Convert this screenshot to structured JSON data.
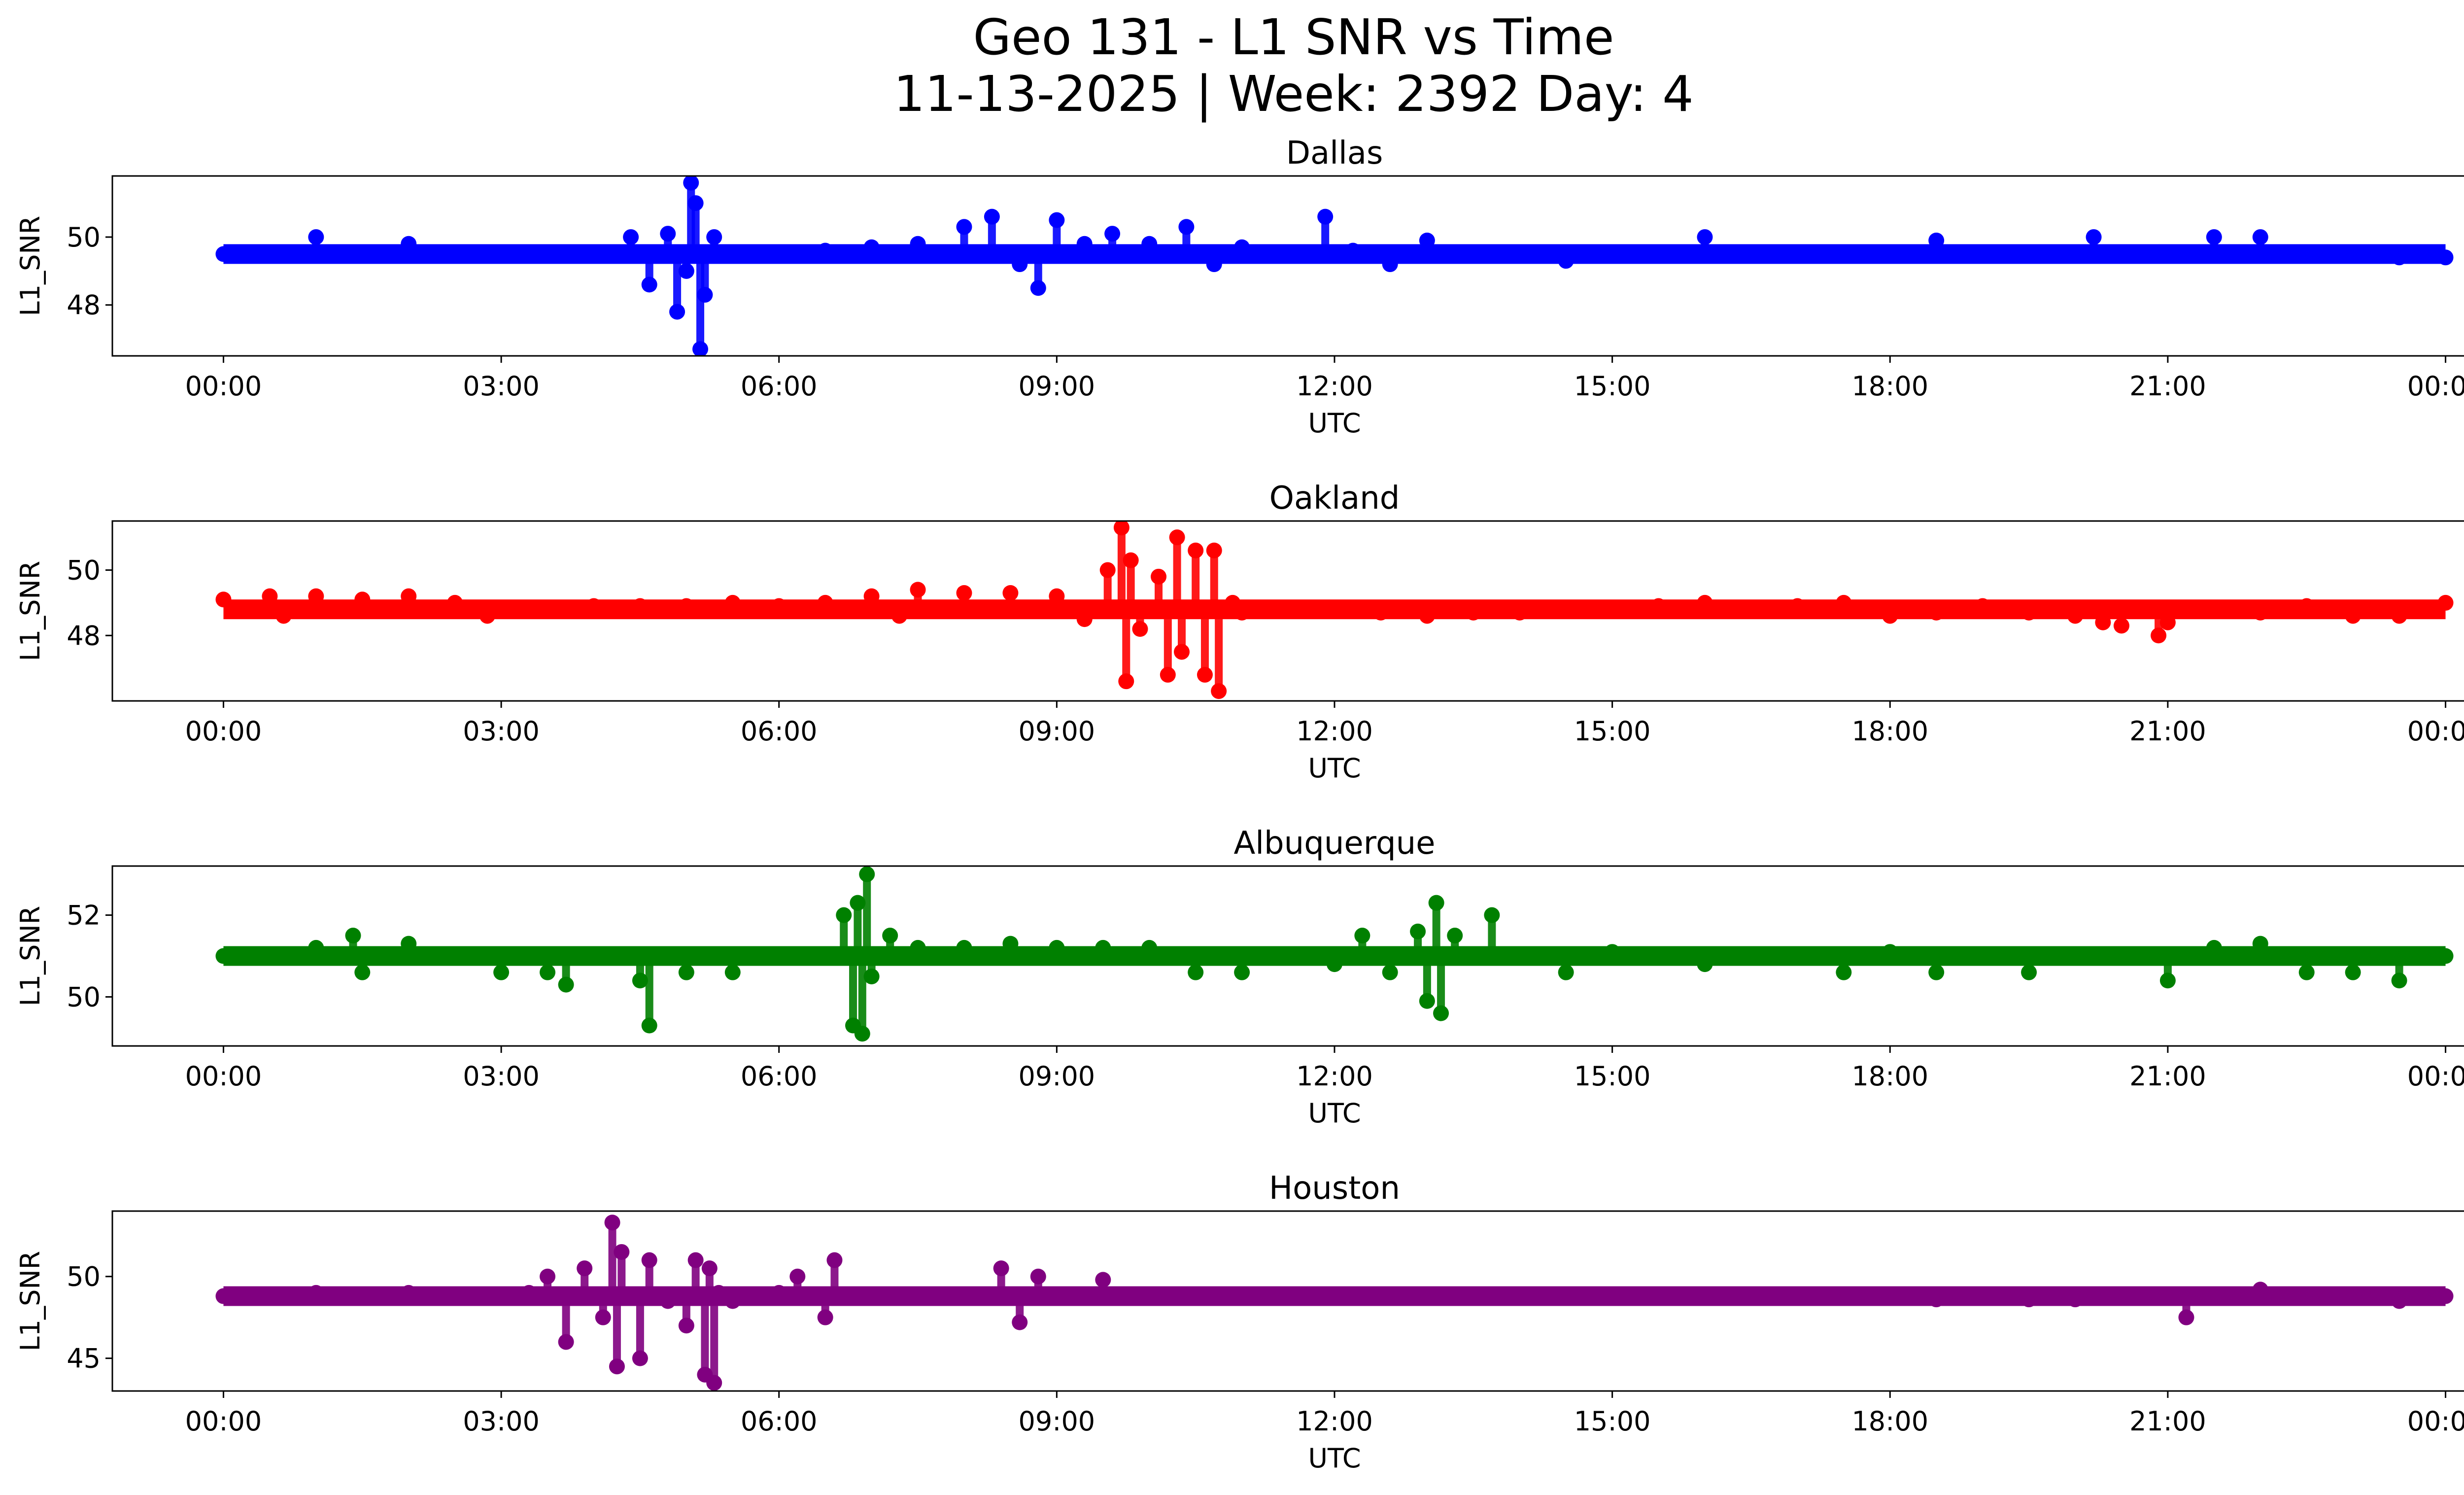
{
  "figure": {
    "title_line1": "Geo 131 - L1 SNR vs Time",
    "title_line2": "11-13-2025 | Week: 2392 Day: 4"
  },
  "chart_data": [
    {
      "type": "scatter",
      "title": "Dallas",
      "xlabel": "UTC",
      "ylabel": "L1_SNR",
      "color": "#0000ff",
      "x_tick_labels": [
        "00:00",
        "03:00",
        "06:00",
        "09:00",
        "12:00",
        "15:00",
        "18:00",
        "21:00",
        "00:00"
      ],
      "x_range_hours": [
        -1.2,
        25.2
      ],
      "ylim": [
        46.5,
        51.8
      ],
      "yticks": [
        48,
        50
      ],
      "series": [
        {
          "x_hours": [
            0,
            0.5,
            1,
            1.5,
            2,
            2.5,
            3,
            3.5,
            4,
            4.4,
            4.6,
            4.8,
            4.9,
            5.0,
            5.05,
            5.1,
            5.15,
            5.2,
            5.3,
            5.5,
            6,
            6.5,
            7,
            7.5,
            8,
            8.3,
            8.6,
            8.8,
            9.0,
            9.3,
            9.6,
            10,
            10.4,
            10.7,
            11,
            11.5,
            11.9,
            12.2,
            12.6,
            13,
            13.5,
            14,
            14.5,
            15,
            15.5,
            16,
            16.5,
            17,
            17.5,
            18,
            18.5,
            19,
            19.5,
            20,
            20.2,
            20.5,
            21,
            21.5,
            22,
            22.5,
            23,
            23.5,
            24
          ],
          "y": [
            49.5,
            49.5,
            50.0,
            49.5,
            49.8,
            49.5,
            49.5,
            49.5,
            49.5,
            50.0,
            48.6,
            50.1,
            47.8,
            49.0,
            51.6,
            51.0,
            46.7,
            48.3,
            50.0,
            49.5,
            49.5,
            49.6,
            49.7,
            49.8,
            50.3,
            50.6,
            49.2,
            48.5,
            50.5,
            49.8,
            50.1,
            49.8,
            50.3,
            49.2,
            49.7,
            49.5,
            50.6,
            49.6,
            49.2,
            49.9,
            49.5,
            49.5,
            49.3,
            49.5,
            49.5,
            50.0,
            49.5,
            49.5,
            49.5,
            49.5,
            49.9,
            49.5,
            49.5,
            49.5,
            50.0,
            49.5,
            49.5,
            50.0,
            50.0,
            49.5,
            49.5,
            49.4,
            49.4
          ]
        }
      ]
    },
    {
      "type": "scatter",
      "title": "Oakland",
      "xlabel": "UTC",
      "ylabel": "L1_SNR",
      "color": "#ff0000",
      "x_tick_labels": [
        "00:00",
        "03:00",
        "06:00",
        "09:00",
        "12:00",
        "15:00",
        "18:00",
        "21:00",
        "00:00"
      ],
      "x_range_hours": [
        -1.2,
        25.2
      ],
      "ylim": [
        46.0,
        51.5
      ],
      "yticks": [
        48,
        50
      ],
      "series": [
        {
          "x_hours": [
            0,
            0.5,
            0.65,
            1,
            1.5,
            2,
            2.5,
            2.85,
            3,
            3.5,
            4,
            4.5,
            5,
            5.5,
            6,
            6.5,
            7,
            7.3,
            7.5,
            8,
            8.5,
            9,
            9.3,
            9.55,
            9.7,
            9.75,
            9.8,
            9.9,
            10.1,
            10.2,
            10.3,
            10.35,
            10.5,
            10.6,
            10.7,
            10.75,
            10.9,
            11,
            11.5,
            12,
            12.5,
            13,
            13.5,
            14,
            14.5,
            15,
            15.5,
            16,
            16.5,
            17,
            17.5,
            18,
            18.5,
            19,
            19.5,
            20,
            20.3,
            20.5,
            20.9,
            21,
            21.5,
            22,
            22.5,
            23,
            23.5,
            24
          ],
          "y": [
            49.1,
            49.2,
            48.6,
            49.2,
            49.1,
            49.2,
            49.0,
            48.6,
            48.8,
            48.8,
            48.9,
            48.9,
            48.9,
            49.0,
            48.9,
            49.0,
            49.2,
            48.6,
            49.4,
            49.3,
            49.3,
            49.2,
            48.5,
            50.0,
            51.3,
            46.6,
            50.3,
            48.2,
            49.8,
            46.8,
            51.0,
            47.5,
            50.6,
            46.8,
            50.6,
            46.3,
            49.0,
            48.7,
            48.8,
            48.8,
            48.7,
            48.6,
            48.7,
            48.7,
            48.8,
            48.8,
            48.9,
            49.0,
            48.8,
            48.9,
            49.0,
            48.6,
            48.7,
            48.9,
            48.7,
            48.6,
            48.4,
            48.3,
            48.0,
            48.4,
            48.8,
            48.7,
            48.9,
            48.6,
            48.6,
            49.0
          ]
        }
      ]
    },
    {
      "type": "scatter",
      "title": "Albuquerque",
      "xlabel": "UTC",
      "ylabel": "L1_SNR",
      "color": "#008000",
      "x_tick_labels": [
        "00:00",
        "03:00",
        "06:00",
        "09:00",
        "12:00",
        "15:00",
        "18:00",
        "21:00",
        "00:00"
      ],
      "x_range_hours": [
        -1.2,
        25.2
      ],
      "ylim": [
        48.8,
        53.2
      ],
      "yticks": [
        50,
        52
      ],
      "series": [
        {
          "x_hours": [
            0,
            0.5,
            1,
            1.4,
            1.5,
            2,
            2.5,
            3,
            3.5,
            3.7,
            4,
            4.5,
            4.6,
            5,
            5.5,
            6,
            6.5,
            6.7,
            6.8,
            6.85,
            6.9,
            6.95,
            7.0,
            7.2,
            7.5,
            8,
            8.5,
            9,
            9.5,
            10,
            10.5,
            11,
            11.5,
            12,
            12.3,
            12.6,
            12.9,
            13.0,
            13.1,
            13.15,
            13.3,
            13.7,
            14,
            14.5,
            15,
            15.5,
            16,
            16.5,
            17,
            17.5,
            18,
            18.5,
            19,
            19.5,
            20,
            20.5,
            21,
            21.5,
            22,
            22.5,
            23,
            23.5,
            24
          ],
          "y": [
            51.0,
            51.0,
            51.2,
            51.5,
            50.6,
            51.3,
            51.0,
            50.6,
            50.6,
            50.3,
            51.0,
            50.4,
            49.3,
            50.6,
            50.6,
            51.0,
            51.0,
            52.0,
            49.3,
            52.3,
            49.1,
            53.0,
            50.5,
            51.5,
            51.2,
            51.2,
            51.3,
            51.2,
            51.2,
            51.2,
            50.6,
            50.6,
            51.0,
            50.8,
            51.5,
            50.6,
            51.6,
            49.9,
            52.3,
            49.6,
            51.5,
            52.0,
            51.0,
            50.6,
            51.1,
            51.0,
            50.8,
            51.0,
            51.0,
            50.6,
            51.1,
            50.6,
            51.0,
            50.6,
            51.0,
            51.0,
            50.4,
            51.2,
            51.3,
            50.6,
            50.6,
            50.4,
            51.0
          ]
        }
      ]
    },
    {
      "type": "scatter",
      "title": "Houston",
      "xlabel": "UTC",
      "ylabel": "L1_SNR",
      "color": "#800080",
      "x_tick_labels": [
        "00:00",
        "03:00",
        "06:00",
        "09:00",
        "12:00",
        "15:00",
        "18:00",
        "21:00",
        "00:00"
      ],
      "x_range_hours": [
        -1.2,
        25.2
      ],
      "ylim": [
        43.0,
        54.0
      ],
      "yticks": [
        45,
        50
      ],
      "series": [
        {
          "x_hours": [
            0,
            0.5,
            1,
            1.5,
            2,
            2.5,
            3,
            3.3,
            3.5,
            3.7,
            3.9,
            4.1,
            4.2,
            4.25,
            4.3,
            4.5,
            4.6,
            4.8,
            5.0,
            5.1,
            5.2,
            5.25,
            5.3,
            5.35,
            5.5,
            5.8,
            6.0,
            6.2,
            6.5,
            6.6,
            7,
            7.5,
            8,
            8.4,
            8.6,
            8.8,
            9,
            9.3,
            9.5,
            10,
            10.5,
            11,
            11.5,
            12,
            12.5,
            13,
            13.5,
            14,
            14.5,
            15,
            15.5,
            16,
            16.5,
            17,
            17.5,
            18,
            18.5,
            19,
            19.5,
            20,
            20.5,
            21,
            21.2,
            21.5,
            22,
            22.5,
            23,
            23.5,
            24
          ],
          "y": [
            48.8,
            48.8,
            49.0,
            48.8,
            49.0,
            48.8,
            48.8,
            49.0,
            50.0,
            46.0,
            50.5,
            47.5,
            53.3,
            44.5,
            51.5,
            45.0,
            51.0,
            48.5,
            47.0,
            51.0,
            44.0,
            50.5,
            43.5,
            49.0,
            48.5,
            48.8,
            49.0,
            50.0,
            47.5,
            51.0,
            48.8,
            48.8,
            48.8,
            50.5,
            47.2,
            50.0,
            48.8,
            48.8,
            49.8,
            48.8,
            48.8,
            48.8,
            48.8,
            48.8,
            48.8,
            48.8,
            48.8,
            48.8,
            48.8,
            48.8,
            48.8,
            48.8,
            48.8,
            48.8,
            48.8,
            48.8,
            48.6,
            48.8,
            48.6,
            48.6,
            48.8,
            48.8,
            47.5,
            48.8,
            49.2,
            48.8,
            48.8,
            48.5,
            48.8
          ]
        }
      ]
    }
  ]
}
